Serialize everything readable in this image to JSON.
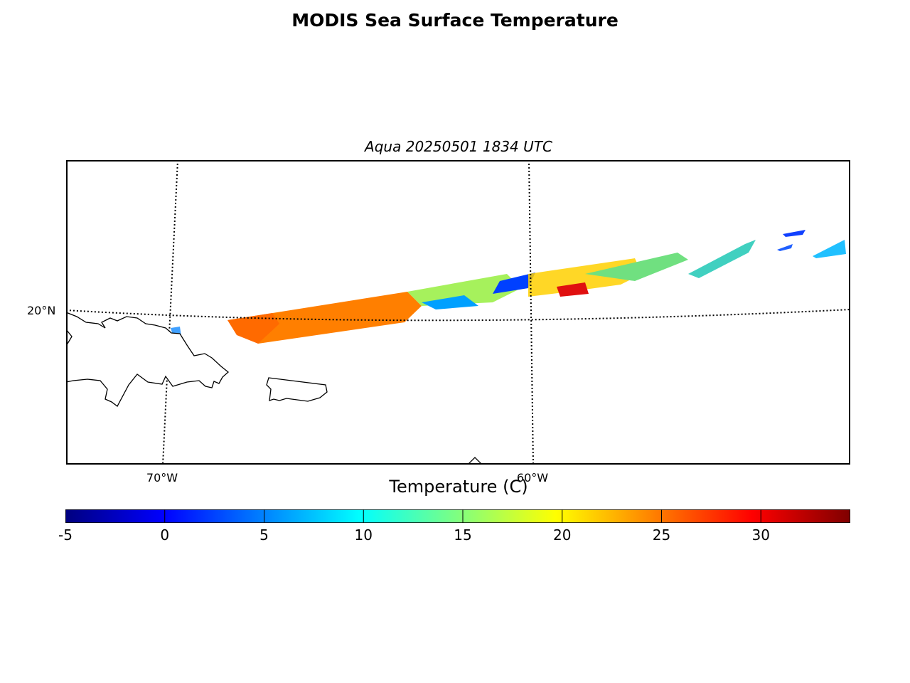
{
  "figure": {
    "title": "MODIS Sea Surface Temperature",
    "subtitle": "Aqua 20250501 1834 UTC"
  },
  "map": {
    "latitude_labels": [
      "20°N"
    ],
    "longitude_labels": [
      "70°W",
      "60°W"
    ],
    "coastline_color": "#000000",
    "graticule_style": "dotted"
  },
  "colorbar": {
    "label": "Temperature (C)",
    "colormap": "jet",
    "range": [
      -5,
      34.5
    ],
    "ticks": [
      "-5",
      "0",
      "5",
      "10",
      "15",
      "20",
      "25",
      "30"
    ]
  }
}
